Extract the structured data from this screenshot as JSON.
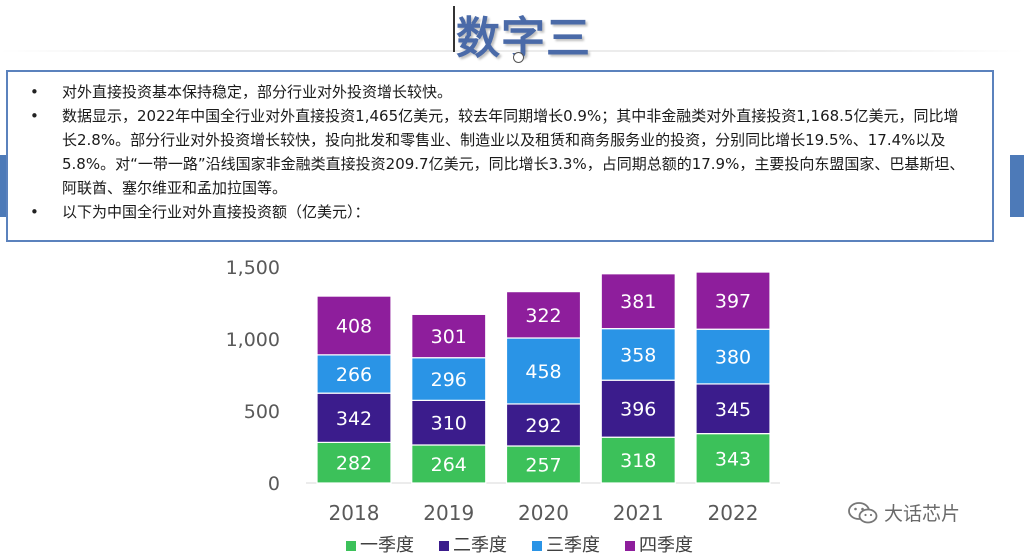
{
  "slide": {
    "title": "数字三",
    "bullets": [
      "对外直接投资基本保持稳定，部分行业对外投资增长较快。",
      "数据显示，2022年中国全行业对外直接投资1,465亿美元，较去年同期增长0.9%；其中非金融类对外直接投资1,168.5亿美元，同比增长2.8%。部分行业对外投资增长较快，投向批发和零售业、制造业以及租赁和商务服务业的投资，分别同比增长19.5%、17.4%以及5.8%。对“一带一路”沿线国家非金融类直接投资209.7亿美元，同比增长3.3%，占同期总额的17.9%，主要投向东盟国家、巴基斯坦、阿联酋、塞尔维亚和孟加拉国等。",
      "以下为中国全行业对外直接投资额（亿美元）："
    ],
    "watermark": "大话芯片",
    "colors": {
      "title": "#4a6aa8",
      "frame": "#5b82bd",
      "side_tab": "#4d7ab8"
    }
  },
  "chart_data": {
    "type": "bar",
    "stacked": true,
    "categories": [
      "2018",
      "2019",
      "2020",
      "2021",
      "2022"
    ],
    "series": [
      {
        "name": "一季度",
        "color": "#3cc15a",
        "values": [
          282,
          264,
          257,
          318,
          343
        ]
      },
      {
        "name": "二季度",
        "color": "#3b1c8c",
        "values": [
          342,
          310,
          292,
          396,
          345
        ]
      },
      {
        "name": "三季度",
        "color": "#2a94e6",
        "values": [
          266,
          296,
          458,
          358,
          380
        ]
      },
      {
        "name": "四季度",
        "color": "#8e1e9c",
        "values": [
          408,
          301,
          322,
          381,
          397
        ]
      }
    ],
    "ylim": [
      0,
      1500
    ],
    "yticks": [
      0,
      500,
      1000,
      1500
    ],
    "ytick_labels": [
      "0",
      "500",
      "1,000",
      "1,500"
    ],
    "grid": false,
    "legend_position": "bottom",
    "data_labels": true
  }
}
